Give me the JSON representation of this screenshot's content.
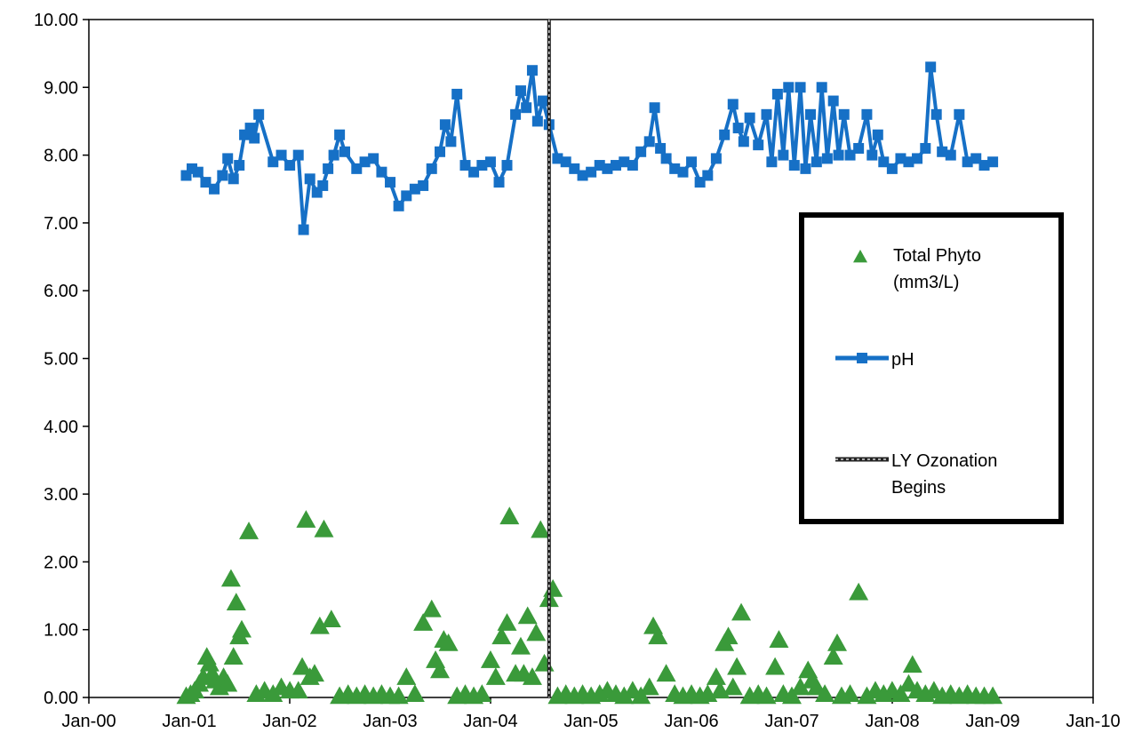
{
  "chart_data": {
    "type": "scatter",
    "title": "",
    "xlabel": "",
    "ylabel": "",
    "ylim": [
      0,
      10
    ],
    "xlim": [
      "2000-01-01",
      "2010-01-01"
    ],
    "y_ticks": [
      "0.00",
      "1.00",
      "2.00",
      "3.00",
      "4.00",
      "5.00",
      "6.00",
      "7.00",
      "8.00",
      "9.00",
      "10.00"
    ],
    "x_ticks": [
      "Jan-00",
      "Jan-01",
      "Jan-02",
      "Jan-03",
      "Jan-04",
      "Jan-05",
      "Jan-06",
      "Jan-07",
      "Jan-08",
      "Jan-09",
      "Jan-10"
    ],
    "grid": false,
    "legend_position": "right",
    "colors": {
      "phyto": "#3a9a3a",
      "ph": "#1670c6",
      "ozonation": "#222222"
    },
    "series": [
      {
        "name": "Total Phyto\n(mm3/L)",
        "legend_lines": [
          "Total Phyto",
          "(mm3/L)"
        ],
        "marker": "triangle",
        "points": [
          [
            "2000-12-20",
            0.02
          ],
          [
            "2001-01-05",
            0.05
          ],
          [
            "2001-01-20",
            0.1
          ],
          [
            "2001-02-05",
            0.2
          ],
          [
            "2001-02-20",
            0.3
          ],
          [
            "2001-03-05",
            0.6
          ],
          [
            "2001-03-15",
            0.5
          ],
          [
            "2001-03-25",
            0.35
          ],
          [
            "2001-04-05",
            0.25
          ],
          [
            "2001-04-20",
            0.15
          ],
          [
            "2001-05-05",
            0.3
          ],
          [
            "2001-05-20",
            0.2
          ],
          [
            "2001-06-01",
            1.75
          ],
          [
            "2001-06-10",
            0.6
          ],
          [
            "2001-06-20",
            1.4
          ],
          [
            "2001-07-01",
            0.9
          ],
          [
            "2001-07-10",
            1.0
          ],
          [
            "2001-08-05",
            2.45
          ],
          [
            "2001-09-01",
            0.05
          ],
          [
            "2001-10-01",
            0.1
          ],
          [
            "2001-11-01",
            0.05
          ],
          [
            "2001-12-01",
            0.15
          ],
          [
            "2002-01-01",
            0.1
          ],
          [
            "2002-02-01",
            0.1
          ],
          [
            "2002-02-15",
            0.45
          ],
          [
            "2002-03-01",
            2.62
          ],
          [
            "2002-03-15",
            0.3
          ],
          [
            "2002-04-01",
            0.35
          ],
          [
            "2002-04-20",
            1.05
          ],
          [
            "2002-05-05",
            2.48
          ],
          [
            "2002-06-01",
            1.15
          ],
          [
            "2002-07-01",
            0.02
          ],
          [
            "2002-08-01",
            0.05
          ],
          [
            "2002-09-01",
            0.02
          ],
          [
            "2002-10-01",
            0.05
          ],
          [
            "2002-11-01",
            0.02
          ],
          [
            "2002-12-01",
            0.05
          ],
          [
            "2003-01-01",
            0.02
          ],
          [
            "2003-02-01",
            0.02
          ],
          [
            "2003-03-01",
            0.3
          ],
          [
            "2003-04-01",
            0.05
          ],
          [
            "2003-05-01",
            1.1
          ],
          [
            "2003-06-01",
            1.3
          ],
          [
            "2003-06-15",
            0.55
          ],
          [
            "2003-07-01",
            0.4
          ],
          [
            "2003-07-15",
            0.85
          ],
          [
            "2003-08-01",
            0.8
          ],
          [
            "2003-09-01",
            0.02
          ],
          [
            "2003-10-01",
            0.05
          ],
          [
            "2003-11-01",
            0.02
          ],
          [
            "2003-12-01",
            0.05
          ],
          [
            "2004-01-01",
            0.55
          ],
          [
            "2004-01-20",
            0.3
          ],
          [
            "2004-02-10",
            0.9
          ],
          [
            "2004-03-01",
            1.1
          ],
          [
            "2004-03-10",
            2.67
          ],
          [
            "2004-04-01",
            0.35
          ],
          [
            "2004-04-20",
            0.75
          ],
          [
            "2004-05-01",
            0.35
          ],
          [
            "2004-05-15",
            1.2
          ],
          [
            "2004-06-01",
            0.3
          ],
          [
            "2004-06-15",
            0.95
          ],
          [
            "2004-07-01",
            2.47
          ],
          [
            "2004-07-15",
            0.5
          ],
          [
            "2004-08-01",
            1.45
          ],
          [
            "2004-08-15",
            1.6
          ],
          [
            "2004-09-01",
            0.02
          ],
          [
            "2004-10-01",
            0.05
          ],
          [
            "2004-11-01",
            0.02
          ],
          [
            "2004-12-01",
            0.05
          ],
          [
            "2005-01-01",
            0.02
          ],
          [
            "2005-02-01",
            0.05
          ],
          [
            "2005-03-01",
            0.1
          ],
          [
            "2005-04-01",
            0.05
          ],
          [
            "2005-05-01",
            0.02
          ],
          [
            "2005-06-01",
            0.1
          ],
          [
            "2005-07-01",
            0.02
          ],
          [
            "2005-08-01",
            0.15
          ],
          [
            "2005-08-15",
            1.05
          ],
          [
            "2005-09-01",
            0.9
          ],
          [
            "2005-10-01",
            0.35
          ],
          [
            "2005-11-01",
            0.05
          ],
          [
            "2005-12-01",
            0.02
          ],
          [
            "2006-01-01",
            0.05
          ],
          [
            "2006-02-01",
            0.02
          ],
          [
            "2006-03-01",
            0.05
          ],
          [
            "2006-04-01",
            0.3
          ],
          [
            "2006-04-15",
            0.1
          ],
          [
            "2006-05-01",
            0.8
          ],
          [
            "2006-05-15",
            0.9
          ],
          [
            "2006-06-01",
            0.15
          ],
          [
            "2006-06-15",
            0.45
          ],
          [
            "2006-07-01",
            1.25
          ],
          [
            "2006-08-01",
            0.02
          ],
          [
            "2006-09-01",
            0.05
          ],
          [
            "2006-10-01",
            0.02
          ],
          [
            "2006-11-01",
            0.45
          ],
          [
            "2006-11-15",
            0.85
          ],
          [
            "2006-12-01",
            0.05
          ],
          [
            "2007-01-01",
            0.02
          ],
          [
            "2007-02-01",
            0.15
          ],
          [
            "2007-03-01",
            0.4
          ],
          [
            "2007-03-15",
            0.25
          ],
          [
            "2007-04-01",
            0.15
          ],
          [
            "2007-05-01",
            0.05
          ],
          [
            "2007-06-01",
            0.6
          ],
          [
            "2007-06-15",
            0.8
          ],
          [
            "2007-07-01",
            0.02
          ],
          [
            "2007-08-01",
            0.05
          ],
          [
            "2007-09-01",
            1.55
          ],
          [
            "2007-10-01",
            0.02
          ],
          [
            "2007-11-01",
            0.1
          ],
          [
            "2007-12-01",
            0.05
          ],
          [
            "2008-01-01",
            0.1
          ],
          [
            "2008-02-01",
            0.05
          ],
          [
            "2008-03-01",
            0.2
          ],
          [
            "2008-03-15",
            0.48
          ],
          [
            "2008-04-01",
            0.1
          ],
          [
            "2008-05-01",
            0.05
          ],
          [
            "2008-06-01",
            0.1
          ],
          [
            "2008-07-01",
            0.02
          ],
          [
            "2008-08-01",
            0.05
          ],
          [
            "2008-09-01",
            0.02
          ],
          [
            "2008-10-01",
            0.05
          ],
          [
            "2008-11-01",
            0.02
          ],
          [
            "2008-12-01",
            0.02
          ],
          [
            "2009-01-01",
            0.02
          ]
        ]
      },
      {
        "name": "pH",
        "legend_lines": [
          "pH"
        ],
        "marker": "square-line",
        "points": [
          [
            "2000-12-20",
            7.7
          ],
          [
            "2001-01-10",
            7.8
          ],
          [
            "2001-02-01",
            7.75
          ],
          [
            "2001-03-01",
            7.6
          ],
          [
            "2001-04-01",
            7.5
          ],
          [
            "2001-05-01",
            7.7
          ],
          [
            "2001-05-20",
            7.95
          ],
          [
            "2001-06-10",
            7.65
          ],
          [
            "2001-07-01",
            7.85
          ],
          [
            "2001-07-20",
            8.3
          ],
          [
            "2001-08-10",
            8.4
          ],
          [
            "2001-08-25",
            8.25
          ],
          [
            "2001-09-10",
            8.6
          ],
          [
            "2001-11-01",
            7.9
          ],
          [
            "2001-12-01",
            8.0
          ],
          [
            "2002-01-01",
            7.85
          ],
          [
            "2002-02-01",
            8.0
          ],
          [
            "2002-02-20",
            6.9
          ],
          [
            "2002-03-15",
            7.65
          ],
          [
            "2002-04-10",
            7.45
          ],
          [
            "2002-05-01",
            7.55
          ],
          [
            "2002-05-20",
            7.8
          ],
          [
            "2002-06-10",
            8.0
          ],
          [
            "2002-07-01",
            8.3
          ],
          [
            "2002-07-20",
            8.05
          ],
          [
            "2002-09-01",
            7.8
          ],
          [
            "2002-10-01",
            7.9
          ],
          [
            "2002-11-01",
            7.95
          ],
          [
            "2002-12-01",
            7.75
          ],
          [
            "2003-01-01",
            7.6
          ],
          [
            "2003-02-01",
            7.25
          ],
          [
            "2003-03-01",
            7.4
          ],
          [
            "2003-04-01",
            7.5
          ],
          [
            "2003-05-01",
            7.55
          ],
          [
            "2003-06-01",
            7.8
          ],
          [
            "2003-07-01",
            8.05
          ],
          [
            "2003-07-20",
            8.45
          ],
          [
            "2003-08-10",
            8.2
          ],
          [
            "2003-09-01",
            8.9
          ],
          [
            "2003-10-01",
            7.85
          ],
          [
            "2003-11-01",
            7.75
          ],
          [
            "2003-12-01",
            7.85
          ],
          [
            "2004-01-01",
            7.9
          ],
          [
            "2004-02-01",
            7.6
          ],
          [
            "2004-03-01",
            7.85
          ],
          [
            "2004-04-01",
            8.6
          ],
          [
            "2004-04-20",
            8.95
          ],
          [
            "2004-05-10",
            8.7
          ],
          [
            "2004-06-01",
            9.25
          ],
          [
            "2004-06-20",
            8.5
          ],
          [
            "2004-07-10",
            8.8
          ],
          [
            "2004-08-01",
            8.45
          ],
          [
            "2004-09-01",
            7.95
          ],
          [
            "2004-10-01",
            7.9
          ],
          [
            "2004-11-01",
            7.8
          ],
          [
            "2004-12-01",
            7.7
          ],
          [
            "2005-01-01",
            7.75
          ],
          [
            "2005-02-01",
            7.85
          ],
          [
            "2005-03-01",
            7.8
          ],
          [
            "2005-04-01",
            7.85
          ],
          [
            "2005-05-01",
            7.9
          ],
          [
            "2005-06-01",
            7.85
          ],
          [
            "2005-07-01",
            8.05
          ],
          [
            "2005-08-01",
            8.2
          ],
          [
            "2005-08-20",
            8.7
          ],
          [
            "2005-09-10",
            8.1
          ],
          [
            "2005-10-01",
            7.95
          ],
          [
            "2005-11-01",
            7.8
          ],
          [
            "2005-12-01",
            7.75
          ],
          [
            "2006-01-01",
            7.9
          ],
          [
            "2006-02-01",
            7.6
          ],
          [
            "2006-03-01",
            7.7
          ],
          [
            "2006-04-01",
            7.95
          ],
          [
            "2006-05-01",
            8.3
          ],
          [
            "2006-06-01",
            8.75
          ],
          [
            "2006-06-20",
            8.4
          ],
          [
            "2006-07-10",
            8.2
          ],
          [
            "2006-08-01",
            8.55
          ],
          [
            "2006-09-01",
            8.15
          ],
          [
            "2006-10-01",
            8.6
          ],
          [
            "2006-10-20",
            7.9
          ],
          [
            "2006-11-10",
            8.9
          ],
          [
            "2006-12-01",
            8.0
          ],
          [
            "2006-12-20",
            9.0
          ],
          [
            "2007-01-10",
            7.85
          ],
          [
            "2007-02-01",
            9.0
          ],
          [
            "2007-02-20",
            7.8
          ],
          [
            "2007-03-10",
            8.6
          ],
          [
            "2007-04-01",
            7.9
          ],
          [
            "2007-04-20",
            9.0
          ],
          [
            "2007-05-10",
            7.95
          ],
          [
            "2007-06-01",
            8.8
          ],
          [
            "2007-06-20",
            8.0
          ],
          [
            "2007-07-10",
            8.6
          ],
          [
            "2007-08-01",
            8.0
          ],
          [
            "2007-09-01",
            8.1
          ],
          [
            "2007-10-01",
            8.6
          ],
          [
            "2007-10-20",
            8.0
          ],
          [
            "2007-11-10",
            8.3
          ],
          [
            "2007-12-01",
            7.9
          ],
          [
            "2008-01-01",
            7.8
          ],
          [
            "2008-02-01",
            7.95
          ],
          [
            "2008-03-01",
            7.9
          ],
          [
            "2008-04-01",
            7.95
          ],
          [
            "2008-05-01",
            8.1
          ],
          [
            "2008-05-20",
            9.3
          ],
          [
            "2008-06-10",
            8.6
          ],
          [
            "2008-07-01",
            8.05
          ],
          [
            "2008-08-01",
            8.0
          ],
          [
            "2008-09-01",
            8.6
          ],
          [
            "2008-10-01",
            7.9
          ],
          [
            "2008-11-01",
            7.95
          ],
          [
            "2008-12-01",
            7.85
          ],
          [
            "2009-01-01",
            7.9
          ]
        ]
      },
      {
        "name": "LY Ozonation\nBegins",
        "legend_lines": [
          "LY Ozonation",
          "Begins"
        ],
        "marker": "vertical-line",
        "x": "2004-08-01"
      }
    ]
  }
}
